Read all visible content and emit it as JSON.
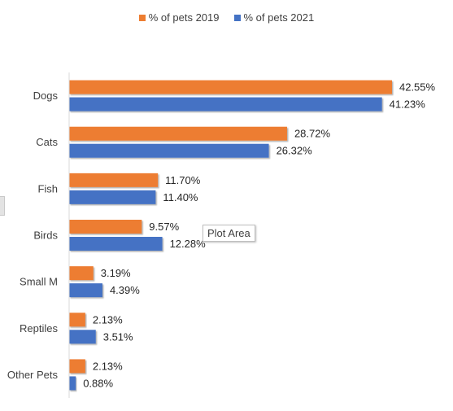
{
  "chart_data": {
    "type": "bar",
    "orientation": "horizontal",
    "title": "",
    "xlabel": "",
    "ylabel": "",
    "grid": false,
    "legend_position": "top",
    "xlim": [
      0,
      45
    ],
    "categories": [
      "Dogs",
      "Cats",
      "Fish",
      "Birds",
      "Small M",
      "Reptiles",
      "Other Pets"
    ],
    "series": [
      {
        "name": "% of pets 2019",
        "color": "#ed7d31",
        "values": [
          42.55,
          28.72,
          11.7,
          9.57,
          3.19,
          2.13,
          2.13
        ],
        "labels": [
          "42.55%",
          "28.72%",
          "11.70%",
          "9.57%",
          "3.19%",
          "2.13%",
          "2.13%"
        ]
      },
      {
        "name": "% of pets 2021",
        "color": "#4472c4",
        "values": [
          41.23,
          26.32,
          11.4,
          12.28,
          4.39,
          3.51,
          0.88
        ],
        "labels": [
          "41.23%",
          "26.32%",
          "11.40%",
          "12.28%",
          "4.39%",
          "3.51%",
          "0.88%"
        ]
      }
    ]
  },
  "tooltip": {
    "text": "Plot Area"
  }
}
